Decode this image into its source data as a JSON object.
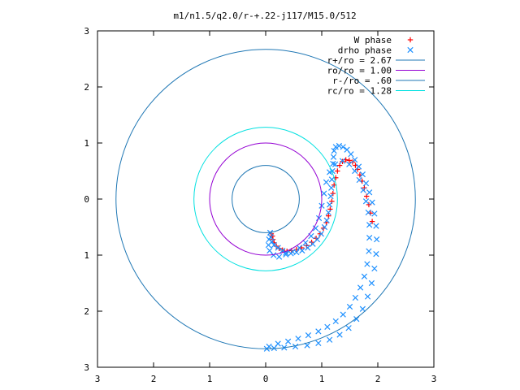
{
  "chart_data": {
    "type": "scatter",
    "title": "m1/n1.5/q2.0/r-+.22-j117/M15.0/512",
    "xlabel": "",
    "ylabel": "",
    "xlim": [
      -3,
      3
    ],
    "ylim": [
      -3,
      3
    ],
    "x_tick_labels": [
      "3",
      "2",
      "1",
      "0",
      "1",
      "2",
      "3"
    ],
    "y_tick_labels": [
      "3",
      "2",
      "1",
      "0",
      "1",
      "2",
      "3"
    ],
    "grid": false,
    "legend_position": "top-right",
    "series": [
      {
        "name": "W phase",
        "marker": "plus",
        "color": "#ff0000",
        "points": [
          [
            0.1,
            -0.62
          ],
          [
            0.12,
            -0.66
          ],
          [
            0.13,
            -0.72
          ],
          [
            0.15,
            -0.78
          ],
          [
            0.19,
            -0.84
          ],
          [
            0.24,
            -0.88
          ],
          [
            0.3,
            -0.91
          ],
          [
            0.38,
            -0.93
          ],
          [
            0.46,
            -0.92
          ],
          [
            0.55,
            -0.9
          ],
          [
            0.64,
            -0.87
          ],
          [
            0.73,
            -0.83
          ],
          [
            0.82,
            -0.77
          ],
          [
            0.9,
            -0.7
          ],
          [
            0.97,
            -0.62
          ],
          [
            1.03,
            -0.52
          ],
          [
            1.08,
            -0.42
          ],
          [
            1.12,
            -0.3
          ],
          [
            1.15,
            -0.18
          ],
          [
            1.18,
            -0.04
          ],
          [
            1.2,
            0.1
          ],
          [
            1.22,
            0.25
          ],
          [
            1.25,
            0.38
          ],
          [
            1.28,
            0.5
          ],
          [
            1.32,
            0.6
          ],
          [
            1.37,
            0.67
          ],
          [
            1.43,
            0.7
          ],
          [
            1.49,
            0.69
          ],
          [
            1.55,
            0.66
          ],
          [
            1.6,
            0.6
          ],
          [
            1.64,
            0.53
          ],
          [
            1.68,
            0.43
          ],
          [
            1.72,
            0.32
          ],
          [
            1.76,
            0.2
          ],
          [
            1.8,
            0.05
          ],
          [
            1.84,
            -0.1
          ],
          [
            1.87,
            -0.25
          ],
          [
            1.9,
            -0.4
          ]
        ]
      },
      {
        "name": "drho phase",
        "marker": "x",
        "color": "#1e90ff",
        "points": [
          [
            0.08,
            -0.6
          ],
          [
            0.09,
            -0.68
          ],
          [
            0.11,
            -0.76
          ],
          [
            0.15,
            -0.82
          ],
          [
            0.22,
            -0.87
          ],
          [
            0.3,
            -0.92
          ],
          [
            0.36,
            -0.96
          ],
          [
            0.45,
            -0.97
          ],
          [
            0.55,
            -0.95
          ],
          [
            0.65,
            -0.92
          ],
          [
            0.75,
            -0.87
          ],
          [
            0.84,
            -0.8
          ],
          [
            0.92,
            -0.72
          ],
          [
            0.99,
            -0.62
          ],
          [
            1.05,
            -0.5
          ],
          [
            1.09,
            -0.38
          ],
          [
            1.12,
            -0.24
          ],
          [
            1.14,
            -0.1
          ],
          [
            1.16,
            0.05
          ],
          [
            1.17,
            0.2
          ],
          [
            1.18,
            0.35
          ],
          [
            1.19,
            0.5
          ],
          [
            1.2,
            0.63
          ],
          [
            1.21,
            0.75
          ],
          [
            1.22,
            0.86
          ],
          [
            1.25,
            0.93
          ],
          [
            1.31,
            0.95
          ],
          [
            1.38,
            0.93
          ],
          [
            1.45,
            0.88
          ],
          [
            1.52,
            0.8
          ],
          [
            1.59,
            0.7
          ],
          [
            1.66,
            0.58
          ],
          [
            1.73,
            0.44
          ],
          [
            1.79,
            0.28
          ],
          [
            1.85,
            0.12
          ],
          [
            1.9,
            -0.06
          ],
          [
            1.94,
            -0.26
          ],
          [
            1.97,
            -0.48
          ],
          [
            1.98,
            -0.72
          ],
          [
            1.97,
            -0.98
          ],
          [
            1.94,
            -1.24
          ],
          [
            1.89,
            -1.5
          ],
          [
            1.82,
            -1.74
          ],
          [
            1.73,
            -1.96
          ],
          [
            1.62,
            -2.14
          ],
          [
            1.48,
            -2.3
          ],
          [
            1.32,
            -2.42
          ],
          [
            1.14,
            -2.51
          ],
          [
            0.94,
            -2.57
          ],
          [
            0.74,
            -2.61
          ],
          [
            0.53,
            -2.63
          ],
          [
            0.33,
            -2.65
          ],
          [
            0.15,
            -2.66
          ],
          [
            0.02,
            -2.67
          ],
          [
            0.06,
            -2.63
          ],
          [
            0.22,
            -2.58
          ],
          [
            0.4,
            -2.54
          ],
          [
            0.58,
            -2.49
          ],
          [
            0.76,
            -2.43
          ],
          [
            0.94,
            -2.36
          ],
          [
            1.1,
            -2.28
          ],
          [
            1.25,
            -2.18
          ],
          [
            1.38,
            -2.06
          ],
          [
            1.5,
            -1.92
          ],
          [
            1.6,
            -1.76
          ],
          [
            1.69,
            -1.58
          ],
          [
            1.76,
            -1.38
          ],
          [
            1.81,
            -1.16
          ],
          [
            1.84,
            -0.93
          ],
          [
            1.85,
            -0.69
          ],
          [
            1.85,
            -0.46
          ],
          [
            1.83,
            -0.24
          ],
          [
            1.79,
            -0.04
          ],
          [
            1.74,
            0.16
          ],
          [
            1.67,
            0.34
          ],
          [
            1.59,
            0.5
          ],
          [
            1.49,
            0.62
          ],
          [
            1.37,
            0.68
          ],
          [
            1.24,
            0.62
          ],
          [
            1.14,
            0.48
          ],
          [
            1.08,
            0.3
          ],
          [
            1.04,
            0.1
          ],
          [
            1.0,
            -0.12
          ],
          [
            0.95,
            -0.34
          ],
          [
            0.89,
            -0.52
          ],
          [
            0.81,
            -0.66
          ],
          [
            0.71,
            -0.78
          ],
          [
            0.6,
            -0.87
          ],
          [
            0.48,
            -0.94
          ],
          [
            0.36,
            -0.99
          ],
          [
            0.24,
            -1.03
          ],
          [
            0.14,
            -1.0
          ],
          [
            0.07,
            -0.92
          ],
          [
            0.05,
            -0.82
          ],
          [
            0.06,
            -0.72
          ]
        ]
      },
      {
        "name": "r+/ro = 2.67",
        "kind": "circle",
        "radius": 2.67,
        "color": "#1f77b4"
      },
      {
        "name": "ro/ro = 1.00",
        "kind": "circle",
        "radius": 1.0,
        "color": "#9400d3"
      },
      {
        "name": "r-/ro = .60",
        "kind": "circle",
        "radius": 0.6,
        "color": "#1f77b4"
      },
      {
        "name": "rc/ro = 1.28",
        "kind": "circle",
        "radius": 1.28,
        "color": "#00e0e0"
      }
    ]
  }
}
